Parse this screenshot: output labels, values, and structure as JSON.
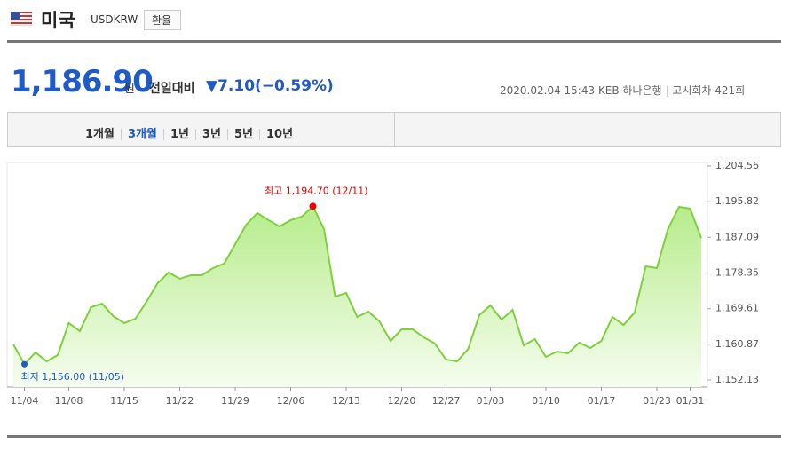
{
  "header": {
    "country": "미국",
    "code": "USDKRW",
    "button": "환율"
  },
  "quote": {
    "price": "1,186.90",
    "unit": "원",
    "compare_label": "전일대비",
    "change": "▼7.10(−0.59%)",
    "datetime": "2020.02.04 15:43",
    "bank": "KEB 하나은행",
    "round": "고시회차 421회"
  },
  "tabs": [
    "1개월",
    "3개월",
    "1년",
    "3년",
    "5년",
    "10년"
  ],
  "chart_data": {
    "type": "area",
    "categories": [
      null,
      "11/04",
      null,
      null,
      null,
      "11/08",
      null,
      null,
      null,
      null,
      "11/15",
      null,
      null,
      null,
      null,
      "11/22",
      null,
      null,
      null,
      null,
      "11/29",
      null,
      null,
      null,
      null,
      "12/06",
      null,
      null,
      null,
      null,
      "12/13",
      null,
      null,
      null,
      null,
      "12/20",
      null,
      null,
      null,
      "12/27",
      null,
      null,
      null,
      "01/03",
      null,
      null,
      null,
      null,
      "01/10",
      null,
      null,
      null,
      null,
      "01/17",
      null,
      null,
      null,
      null,
      "01/23",
      null,
      null,
      "01/31",
      null
    ],
    "values": [
      1160.83,
      1156.0,
      1158.88,
      1156.7,
      1158.22,
      1166.06,
      1164.1,
      1169.97,
      1170.84,
      1167.8,
      1166.06,
      1167.14,
      1171.28,
      1175.85,
      1178.46,
      1176.94,
      1177.81,
      1177.81,
      1179.55,
      1180.64,
      1185.42,
      1190.21,
      1193.04,
      1191.3,
      1189.77,
      1191.3,
      1192.17,
      1194.7,
      1189.12,
      1172.58,
      1173.45,
      1167.58,
      1168.89,
      1166.49,
      1161.7,
      1164.53,
      1164.53,
      1162.57,
      1161.05,
      1157.13,
      1156.7,
      1159.75,
      1168.01,
      1170.41,
      1166.93,
      1169.32,
      1160.62,
      1162.14,
      1157.79,
      1159.09,
      1158.66,
      1161.27,
      1159.96,
      1161.7,
      1167.58,
      1165.62,
      1168.67,
      1179.98,
      1179.55,
      1189.12,
      1194.56,
      1194.13,
      1186.9
    ],
    "color": "#7ed03c",
    "ylim": [
      1150.39,
      1205.43
    ],
    "yticks": [
      {
        "value": 1152.13,
        "label": "1,152.13"
      },
      {
        "value": 1160.87,
        "label": "1,160.87"
      },
      {
        "value": 1169.61,
        "label": "1,169.61"
      },
      {
        "value": 1178.35,
        "label": "1,178.35"
      },
      {
        "value": 1187.09,
        "label": "1,187.09"
      },
      {
        "value": 1195.82,
        "label": "1,195.82"
      },
      {
        "value": 1204.56,
        "label": "1,204.56"
      }
    ],
    "high_label": "최고 1,194.70 (12/11)",
    "low_label": "최저 1,156.00 (11/05)"
  }
}
